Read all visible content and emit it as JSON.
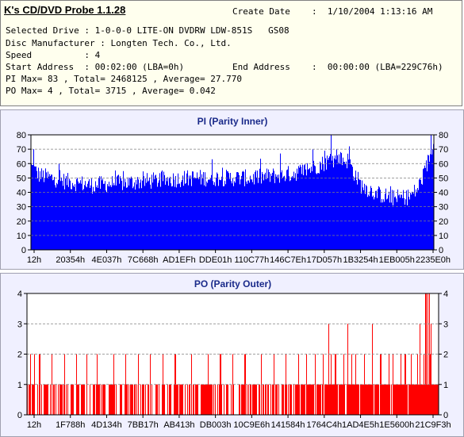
{
  "app_title": "K's CD/DVD Probe 1.1.28",
  "info": {
    "create_date_label": "Create Date",
    "create_date_value": ":  1/10/2004 1:13:16 AM",
    "selected_drive": "Selected Drive : 1-0-0-0 LITE-ON DVDRW LDW-851S   GS08",
    "disc_manufacturer": "Disc Manufacturer : Longten Tech. Co., Ltd.",
    "speed": "Speed          : 4",
    "start_address": "Start Address  : 00:02:00 (LBA=0h)",
    "end_address_label": "End Address",
    "end_address_value": ":  00:00:00 (LBA=229C76h)",
    "pi_summary": "PI Max= 83 , Total= 2468125 , Average= 27.770",
    "po_summary": "PO Max= 4 , Total= 3715 , Average= 0.042"
  },
  "colors": {
    "pi": "#0000ff",
    "po": "#ff0000",
    "panel_bg": "#f0f0ff",
    "info_bg": "#ffffee",
    "title": "#1a2a8a"
  },
  "chart_data": [
    {
      "type": "bar",
      "title": "PI (Parity Inner)",
      "ylim": [
        0,
        80
      ],
      "yticks": [
        0,
        10,
        20,
        30,
        40,
        50,
        60,
        70,
        80
      ],
      "grid": true,
      "xticks": [
        "12h",
        "20354h",
        "4E037h",
        "7C668h",
        "AD1EFh",
        "DDE01h",
        "110C77h",
        "146C7Eh",
        "17D057h",
        "1B3254h",
        "1EB005h",
        "2235E0h"
      ],
      "profile": [
        [
          0,
          58
        ],
        [
          0.02,
          52
        ],
        [
          0.08,
          48
        ],
        [
          0.15,
          45
        ],
        [
          0.25,
          47
        ],
        [
          0.4,
          50
        ],
        [
          0.55,
          50
        ],
        [
          0.65,
          53
        ],
        [
          0.7,
          57
        ],
        [
          0.74,
          62
        ],
        [
          0.76,
          63
        ],
        [
          0.79,
          62
        ],
        [
          0.8,
          55
        ],
        [
          0.82,
          45
        ],
        [
          0.86,
          39
        ],
        [
          0.9,
          36
        ],
        [
          0.94,
          37
        ],
        [
          0.96,
          42
        ],
        [
          0.98,
          55
        ],
        [
          1.0,
          75
        ]
      ],
      "noise": 6,
      "spikes": [
        [
          0.006,
          70
        ],
        [
          0.07,
          60
        ],
        [
          0.45,
          63
        ],
        [
          0.62,
          67
        ],
        [
          0.7,
          70
        ],
        [
          0.73,
          69
        ],
        [
          0.746,
          83
        ],
        [
          0.76,
          70
        ],
        [
          0.77,
          68
        ],
        [
          0.79,
          72
        ],
        [
          0.995,
          80
        ]
      ]
    },
    {
      "type": "bar",
      "title": "PO (Parity Outer)",
      "ylim": [
        0,
        4
      ],
      "yticks": [
        0,
        1,
        2,
        3,
        4
      ],
      "grid": true,
      "xticks": [
        "12h",
        "1F788h",
        "4D134h",
        "7BB17h",
        "AB413h",
        "DB003h",
        "10C9E6h",
        "141584h",
        "1764C4h",
        "1AD4E5h",
        "1E5600h",
        "21C9F3h"
      ],
      "density": [
        [
          0,
          0.5
        ],
        [
          0.3,
          0.55
        ],
        [
          0.6,
          0.6
        ],
        [
          0.7,
          0.85
        ],
        [
          1.0,
          0.95
        ]
      ],
      "twos": [
        0.008,
        0.018,
        0.03,
        0.06,
        0.09,
        0.12,
        0.145,
        0.17,
        0.21,
        0.24,
        0.27,
        0.3,
        0.33,
        0.36,
        0.4,
        0.44,
        0.47,
        0.5,
        0.53,
        0.57,
        0.6,
        0.63,
        0.66,
        0.68,
        0.7,
        0.72,
        0.74,
        0.75,
        0.77,
        0.79,
        0.8,
        0.82,
        0.84,
        0.86,
        0.88,
        0.89,
        0.91,
        0.92,
        0.935,
        0.95,
        0.965,
        0.98
      ],
      "threes": [
        0.733,
        0.78,
        0.84,
        0.955,
        0.982
      ],
      "fours": [
        0.97,
        0.975,
        0.978
      ]
    }
  ]
}
